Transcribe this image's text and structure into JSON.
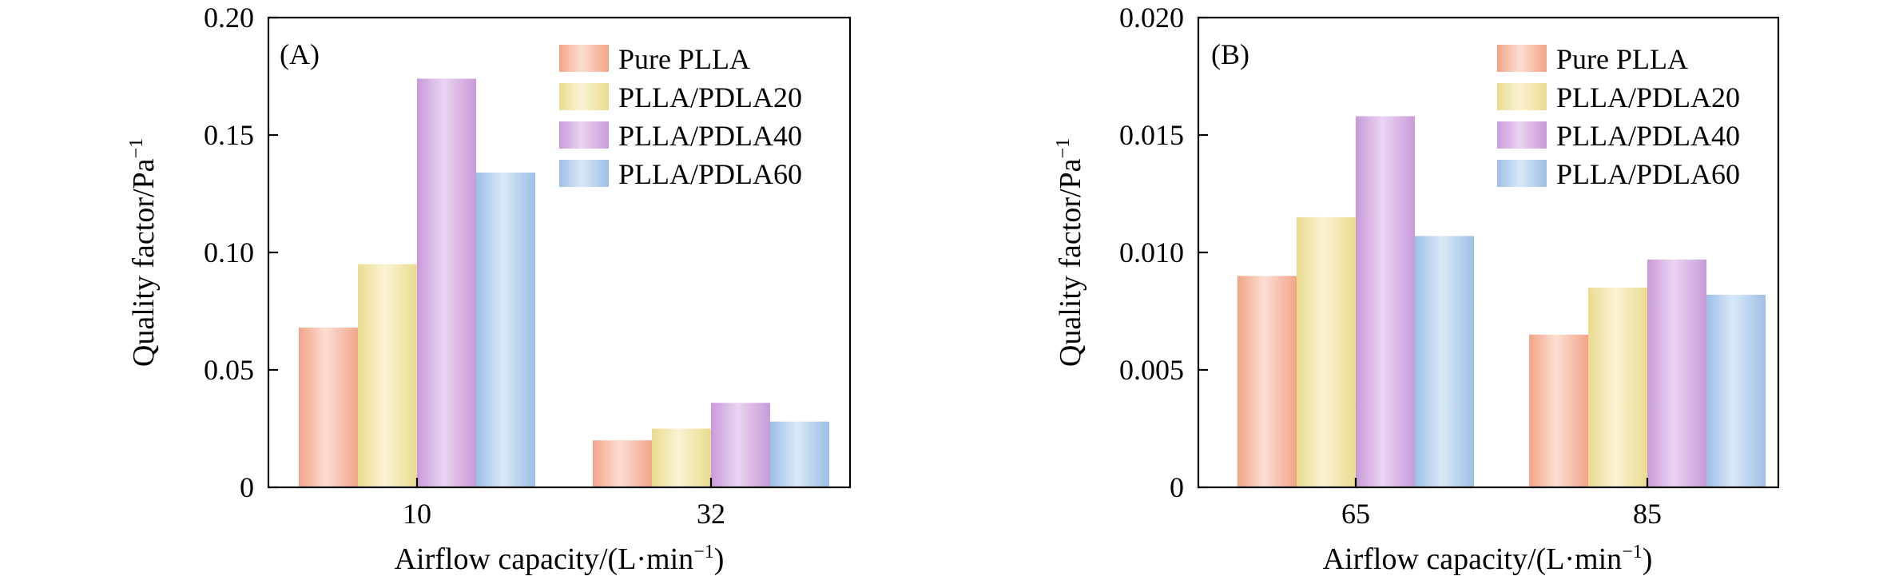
{
  "chart_data": [
    {
      "type": "bar",
      "panel_label": "(A)",
      "xlabel": "Airflow capacity/(L·min",
      "xlabel_sup": "−1",
      "xlabel_close": ")",
      "ylabel": "Quality factor/Pa",
      "ylabel_sup": "−1",
      "categories": [
        "10",
        "32"
      ],
      "ylim": [
        0,
        0.2
      ],
      "yticks": [
        0,
        0.05,
        0.1,
        0.15,
        0.2
      ],
      "ytick_labels": [
        "0",
        "0.05",
        "0.10",
        "0.15",
        "0.20"
      ],
      "legend_position": "top-right",
      "series": [
        {
          "name": "Pure PLLA",
          "values": [
            0.068,
            0.02
          ]
        },
        {
          "name": "PLLA/PDLA20",
          "values": [
            0.095,
            0.025
          ]
        },
        {
          "name": "PLLA/PDLA40",
          "values": [
            0.174,
            0.036
          ]
        },
        {
          "name": "PLLA/PDLA60",
          "values": [
            0.134,
            0.028
          ]
        }
      ]
    },
    {
      "type": "bar",
      "panel_label": "(B)",
      "xlabel": "Airflow capacity/(L·min",
      "xlabel_sup": "−1",
      "xlabel_close": ")",
      "ylabel": "Quality factor/Pa",
      "ylabel_sup": "−1",
      "categories": [
        "65",
        "85"
      ],
      "ylim": [
        0,
        0.02
      ],
      "yticks": [
        0,
        0.005,
        0.01,
        0.015,
        0.02
      ],
      "ytick_labels": [
        "0",
        "0.005",
        "0.010",
        "0.015",
        "0.020"
      ],
      "legend_position": "top-right",
      "series": [
        {
          "name": "Pure PLLA",
          "values": [
            0.009,
            0.0065
          ]
        },
        {
          "name": "PLLA/PDLA20",
          "values": [
            0.0115,
            0.0085
          ]
        },
        {
          "name": "PLLA/PDLA40",
          "values": [
            0.0158,
            0.0097
          ]
        },
        {
          "name": "PLLA/PDLA60",
          "values": [
            0.0107,
            0.0082
          ]
        }
      ]
    }
  ],
  "series_colors": [
    "#f2a488",
    "#eadb8e",
    "#c99ad9",
    "#9ebfe6"
  ],
  "series_highlights": [
    "#fcded2",
    "#faf3d4",
    "#ead4f2",
    "#d9e8f8"
  ]
}
